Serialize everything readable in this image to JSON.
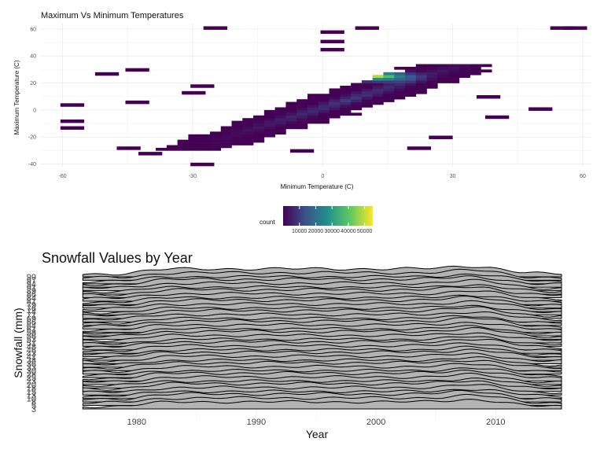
{
  "chart_data": [
    {
      "type": "heatmap",
      "title": "Maximum Vs Minimum Temperatures",
      "xlabel": "Minimum Temperature (C)",
      "ylabel": "Maximum Temperature (C)",
      "xlim": [
        -65,
        62
      ],
      "ylim": [
        -42,
        64
      ],
      "x_ticks": [
        "-60",
        "-30",
        "0",
        "30",
        "60"
      ],
      "x_tick_values": [
        -60,
        -30,
        0,
        30,
        60
      ],
      "y_ticks": [
        "-40",
        "-20",
        "0",
        "20",
        "40",
        "60"
      ],
      "y_tick_values": [
        -40,
        -20,
        0,
        20,
        40,
        60
      ],
      "density_axis": {
        "center_min": -27,
        "center_max": 18,
        "peak": [
          12,
          24
        ]
      },
      "legend": {
        "title": "count",
        "ticks": [
          "10000",
          "20000",
          "30000",
          "40000",
          "50000"
        ],
        "tick_values": [
          10000,
          20000,
          30000,
          40000,
          50000
        ],
        "min": 0,
        "max": 55000,
        "colors": [
          "#440154",
          "#3b528b",
          "#21918c",
          "#5ec962",
          "#fde725"
        ]
      },
      "outliers": [
        {
          "x": -25,
          "y": 61
        },
        {
          "x": 10,
          "y": 61
        },
        {
          "x": 2,
          "y": 58
        },
        {
          "x": 2,
          "y": 51
        },
        {
          "x": 2,
          "y": 45
        },
        {
          "x": 58,
          "y": 61
        },
        {
          "x": 55,
          "y": 61
        },
        {
          "x": -50,
          "y": 27
        },
        {
          "x": -43,
          "y": 30
        },
        {
          "x": -58,
          "y": 4
        },
        {
          "x": -58,
          "y": -8
        },
        {
          "x": -58,
          "y": -13
        },
        {
          "x": -30,
          "y": 13
        },
        {
          "x": -28,
          "y": 18
        },
        {
          "x": -43,
          "y": 6
        },
        {
          "x": 50,
          "y": 1
        },
        {
          "x": 40,
          "y": -5
        },
        {
          "x": 38,
          "y": 10
        },
        {
          "x": -28,
          "y": -40
        },
        {
          "x": -5,
          "y": -30
        },
        {
          "x": -45,
          "y": -28
        },
        {
          "x": -40,
          "y": -32
        },
        {
          "x": 22,
          "y": -28
        },
        {
          "x": 27,
          "y": -20
        }
      ]
    },
    {
      "type": "area",
      "title": "Snowfall Values by Year",
      "xlabel": "Year",
      "ylabel": "Snowfall (mm)",
      "xlim": [
        1972,
        2018
      ],
      "x_ticks": [
        "1980",
        "1990",
        "2000",
        "2010"
      ],
      "x_tick_values": [
        1980,
        1990,
        2000,
        2010
      ],
      "series_range": [
        1975.5,
        2015.5
      ],
      "categories": [
        "3",
        "5",
        "8",
        "10",
        "13",
        "15",
        "18",
        "20",
        "23",
        "25",
        "28",
        "30",
        "33",
        "36",
        "38",
        "41",
        "43",
        "46",
        "48",
        "51",
        "53",
        "56",
        "58",
        "61",
        "64",
        "66",
        "69",
        "71",
        "74",
        "76",
        "79",
        "81",
        "84",
        "86",
        "89",
        "91",
        "94",
        "97",
        "99"
      ],
      "y_labels_readable": [
        "99",
        "97",
        "94",
        "91",
        "89",
        "86",
        "84",
        "81",
        "79",
        "76",
        "74",
        "71",
        "69",
        "66",
        "64",
        "61",
        "58",
        "56",
        "53",
        "51",
        "48",
        "46",
        "43",
        "41",
        "38",
        "36",
        "33",
        "30",
        "28",
        "25",
        "23",
        "20",
        "18",
        "15",
        "13",
        "10",
        "8",
        "5",
        "3"
      ]
    }
  ]
}
